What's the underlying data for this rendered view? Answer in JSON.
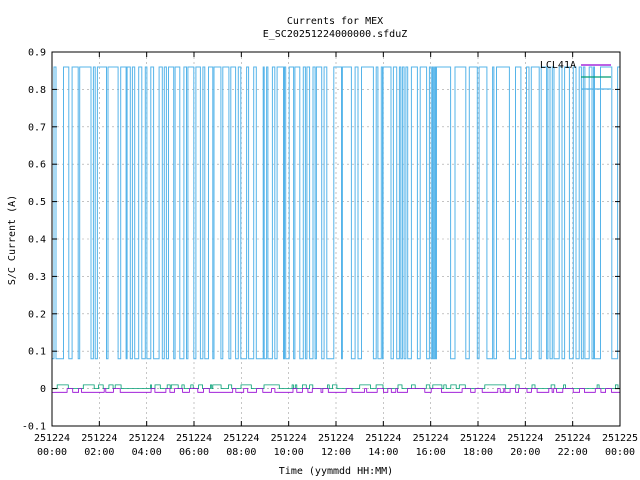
{
  "chart_data": {
    "type": "line",
    "title": "Currents for MEX",
    "subtitle": "E_SC20251224000000.sfduZ",
    "xlabel": "Time (yymmdd HH:MM)",
    "ylabel": "S/C Current (A)",
    "ylim": [
      -0.1,
      0.9
    ],
    "yticks": [
      "-0.1",
      "0",
      "0.1",
      "0.2",
      "0.3",
      "0.4",
      "0.5",
      "0.6",
      "0.7",
      "0.8",
      "0.9"
    ],
    "xlim_hours": [
      0,
      24
    ],
    "xticks": [
      {
        "date": "251224",
        "time": "00:00"
      },
      {
        "date": "251224",
        "time": "02:00"
      },
      {
        "date": "251224",
        "time": "04:00"
      },
      {
        "date": "251224",
        "time": "06:00"
      },
      {
        "date": "251224",
        "time": "08:00"
      },
      {
        "date": "251224",
        "time": "10:00"
      },
      {
        "date": "251224",
        "time": "12:00"
      },
      {
        "date": "251224",
        "time": "14:00"
      },
      {
        "date": "251224",
        "time": "16:00"
      },
      {
        "date": "251224",
        "time": "18:00"
      },
      {
        "date": "251224",
        "time": "20:00"
      },
      {
        "date": "251224",
        "time": "22:00"
      },
      {
        "date": "251225",
        "time": "00:00"
      }
    ],
    "grid": true,
    "legend_position": "top-right",
    "series": [
      {
        "name": "LCL41A",
        "color": "#9400d3",
        "low": -0.01,
        "high": 0.0
      },
      {
        "name": "",
        "color": "#009e73",
        "low": 0.0,
        "high": 0.01
      },
      {
        "name": "",
        "color": "#56b4e9",
        "low": 0.08,
        "high": 0.86
      }
    ]
  }
}
